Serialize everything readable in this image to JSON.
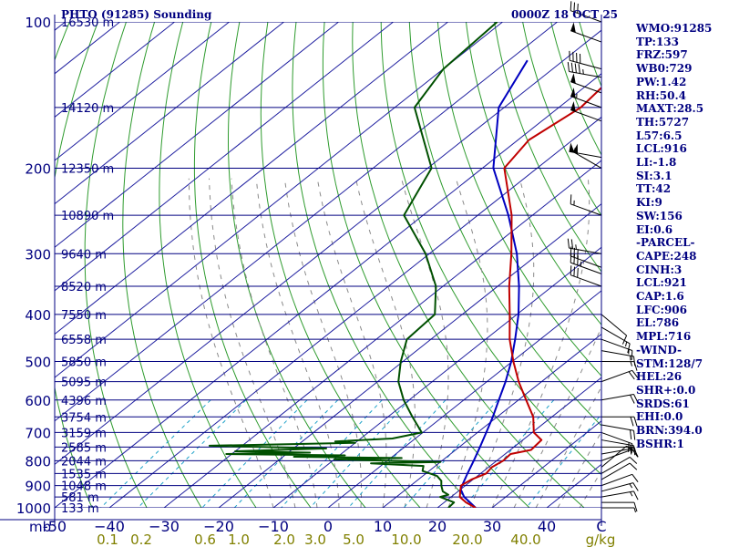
{
  "header": {
    "station": "PHTO (91285) Sounding",
    "valid_time": "0000Z 18 OCT 25"
  },
  "colors": {
    "pressure_lines": "#000080",
    "dry_adiabats": "#2e9b2e",
    "isotherms": "#2020a0",
    "mixing_ratio": "#1aa0c8",
    "moist_adiabats": "#8a8a8a",
    "temperature": "#c00000",
    "dewpoint": "#005000",
    "parcel": "#0000c0",
    "mixing_ratio_labels": "#808000",
    "index_text": "#000080"
  },
  "chart_data": {
    "type": "skew-t",
    "title": "PHTO (91285) Sounding",
    "xlabel": "",
    "ylabel": "mb",
    "pressure_levels": [
      {
        "p": 100,
        "label": "100",
        "height": "16530 m"
      },
      {
        "p": 150,
        "label": "",
        "height": "14120 m"
      },
      {
        "p": 200,
        "label": "200",
        "height": "12350 m"
      },
      {
        "p": 250,
        "label": "",
        "height": "10890 m"
      },
      {
        "p": 300,
        "label": "300",
        "height": "9640 m"
      },
      {
        "p": 350,
        "label": "",
        "height": "8520 m"
      },
      {
        "p": 400,
        "label": "400",
        "height": "7550 m"
      },
      {
        "p": 450,
        "label": "",
        "height": "6558 m"
      },
      {
        "p": 500,
        "label": "500",
        "height": "5850 m"
      },
      {
        "p": 550,
        "label": "",
        "height": "5095 m"
      },
      {
        "p": 600,
        "label": "600",
        "height": "4396 m"
      },
      {
        "p": 650,
        "label": "",
        "height": "3754 m"
      },
      {
        "p": 700,
        "label": "700",
        "height": "3159 m"
      },
      {
        "p": 750,
        "label": "",
        "height": "2585 m"
      },
      {
        "p": 800,
        "label": "800",
        "height": "2044 m"
      },
      {
        "p": 850,
        "label": "",
        "height": "1535 m"
      },
      {
        "p": 900,
        "label": "900",
        "height": "1048 m"
      },
      {
        "p": 950,
        "label": "",
        "height": "581 m"
      },
      {
        "p": 1000,
        "label": "1000",
        "height": "133 m"
      }
    ],
    "temperature_ticks": [
      -50,
      -40,
      -30,
      -20,
      -10,
      0,
      10,
      20,
      30,
      40,
      50
    ],
    "temperature_tick_labels": [
      "-50",
      "−40",
      "−30",
      "−20",
      "−10",
      "0",
      "10",
      "20",
      "30",
      "40",
      "C"
    ],
    "mixing_ratio_labels": [
      "0.1",
      "0.2",
      "0.6",
      "1.0",
      "2.0",
      "3.0",
      "5.0",
      "10.0",
      "20.0",
      "40.0",
      "g/kg"
    ],
    "mixing_ratio_values": [
      0.1,
      0.2,
      0.6,
      1.0,
      2.0,
      3.0,
      5.0,
      10.0,
      20.0,
      40.0
    ],
    "temperature_profile": [
      [
        1000,
        27.0
      ],
      [
        975,
        24.0
      ],
      [
        950,
        21.6
      ],
      [
        925,
        20.4
      ],
      [
        900,
        19.2
      ],
      [
        875,
        19.7
      ],
      [
        850,
        21.0
      ],
      [
        825,
        20.6
      ],
      [
        800,
        21.2
      ],
      [
        775,
        21.0
      ],
      [
        760,
        23.8
      ],
      [
        725,
        23.4
      ],
      [
        700,
        20.3
      ],
      [
        650,
        16.6
      ],
      [
        600,
        11.4
      ],
      [
        550,
        5.8
      ],
      [
        500,
        0.2
      ],
      [
        450,
        -5.6
      ],
      [
        400,
        -11.3
      ],
      [
        350,
        -17.9
      ],
      [
        300,
        -25.0
      ],
      [
        250,
        -33.8
      ],
      [
        200,
        -46.0
      ],
      [
        175,
        -48.0
      ],
      [
        150,
        -46.0
      ],
      [
        125,
        -47.5
      ],
      [
        100,
        -37.9
      ]
    ],
    "dewpoint_profile": [
      [
        1000,
        22.0
      ],
      [
        975,
        21.8
      ],
      [
        950,
        18.0
      ],
      [
        940,
        19.0
      ],
      [
        925,
        17.2
      ],
      [
        900,
        15.6
      ],
      [
        880,
        14.5
      ],
      [
        860,
        12.6
      ],
      [
        840,
        8.8
      ],
      [
        820,
        7.8
      ],
      [
        810,
        -2.4
      ],
      [
        805,
        10.0
      ],
      [
        795,
        -10.0
      ],
      [
        790,
        2.0
      ],
      [
        785,
        -18.0
      ],
      [
        780,
        -9.0
      ],
      [
        775,
        -31.0
      ],
      [
        770,
        -16.0
      ],
      [
        765,
        -30.0
      ],
      [
        755,
        -14.0
      ],
      [
        745,
        -36.0
      ],
      [
        740,
        -22.0
      ],
      [
        735,
        -10.0
      ],
      [
        730,
        -14.0
      ],
      [
        720,
        -4.2
      ],
      [
        700,
        -0.2
      ],
      [
        650,
        -5.5
      ],
      [
        600,
        -11.0
      ],
      [
        550,
        -16.2
      ],
      [
        500,
        -20.4
      ],
      [
        450,
        -24.4
      ],
      [
        400,
        -25.0
      ],
      [
        350,
        -31.3
      ],
      [
        300,
        -40.7
      ],
      [
        250,
        -53.5
      ],
      [
        200,
        -59.3
      ],
      [
        150,
        -76.4
      ],
      [
        125,
        -80.0
      ],
      [
        100,
        -81.0
      ]
    ],
    "parcel_profile": [
      [
        1000,
        27.0
      ],
      [
        950,
        22.4
      ],
      [
        916,
        20.0
      ],
      [
        900,
        19.4
      ],
      [
        850,
        17.6
      ],
      [
        800,
        15.8
      ],
      [
        750,
        13.8
      ],
      [
        700,
        11.6
      ],
      [
        650,
        9.2
      ],
      [
        600,
        6.4
      ],
      [
        550,
        3.4
      ],
      [
        500,
        -0.2
      ],
      [
        450,
        -4.6
      ],
      [
        400,
        -9.7
      ],
      [
        350,
        -16.1
      ],
      [
        300,
        -24.0
      ],
      [
        250,
        -34.4
      ],
      [
        200,
        -48.0
      ],
      [
        150,
        -61.0
      ],
      [
        120,
        -66.6
      ]
    ],
    "wind_profile": [
      [
        1000,
        90,
        5
      ],
      [
        975,
        90,
        10
      ],
      [
        950,
        80,
        15
      ],
      [
        925,
        75,
        15
      ],
      [
        900,
        70,
        10
      ],
      [
        875,
        60,
        10
      ],
      [
        850,
        60,
        10
      ],
      [
        825,
        50,
        10
      ],
      [
        800,
        70,
        10
      ],
      [
        775,
        80,
        10
      ],
      [
        750,
        90,
        15
      ],
      [
        725,
        100,
        20
      ],
      [
        700,
        110,
        20
      ],
      [
        675,
        100,
        20
      ],
      [
        650,
        90,
        20
      ],
      [
        600,
        80,
        20
      ],
      [
        550,
        70,
        20
      ],
      [
        500,
        90,
        15
      ],
      [
        475,
        100,
        15
      ],
      [
        450,
        110,
        15
      ],
      [
        425,
        120,
        15
      ],
      [
        400,
        130,
        10
      ],
      [
        350,
        290,
        30
      ],
      [
        330,
        290,
        35
      ],
      [
        320,
        290,
        30
      ],
      [
        300,
        280,
        25
      ],
      [
        250,
        290,
        15
      ],
      [
        200,
        300,
        50
      ],
      [
        190,
        280,
        55
      ],
      [
        160,
        290,
        50
      ],
      [
        150,
        290,
        55
      ],
      [
        140,
        290,
        50
      ],
      [
        130,
        280,
        45
      ],
      [
        125,
        285,
        40
      ],
      [
        110,
        290,
        50
      ],
      [
        100,
        290,
        30
      ]
    ]
  },
  "indices": [
    "WMO:91285",
    "TP:133",
    "FRZ:597",
    "WB0:729",
    "PW:1.42",
    "RH:50.4",
    "MAXT:28.5",
    "TH:5727",
    "L57:6.5",
    "LCL:916",
    "LI:-1.8",
    "SI:3.1",
    "TT:42",
    "KI:9",
    "SW:156",
    "EI:0.6",
    "-PARCEL-",
    "CAPE:248",
    "CINH:3",
    "LCL:921",
    "CAP:1.6",
    "LFC:906",
    "EL:786",
    "MPL:716",
    "-WIND-",
    "STM:128/7",
    "HEL:26",
    "SHR+:0.0",
    "SRDS:61",
    "EHI:0.0",
    "BRN:394.0",
    "BSHR:1"
  ]
}
